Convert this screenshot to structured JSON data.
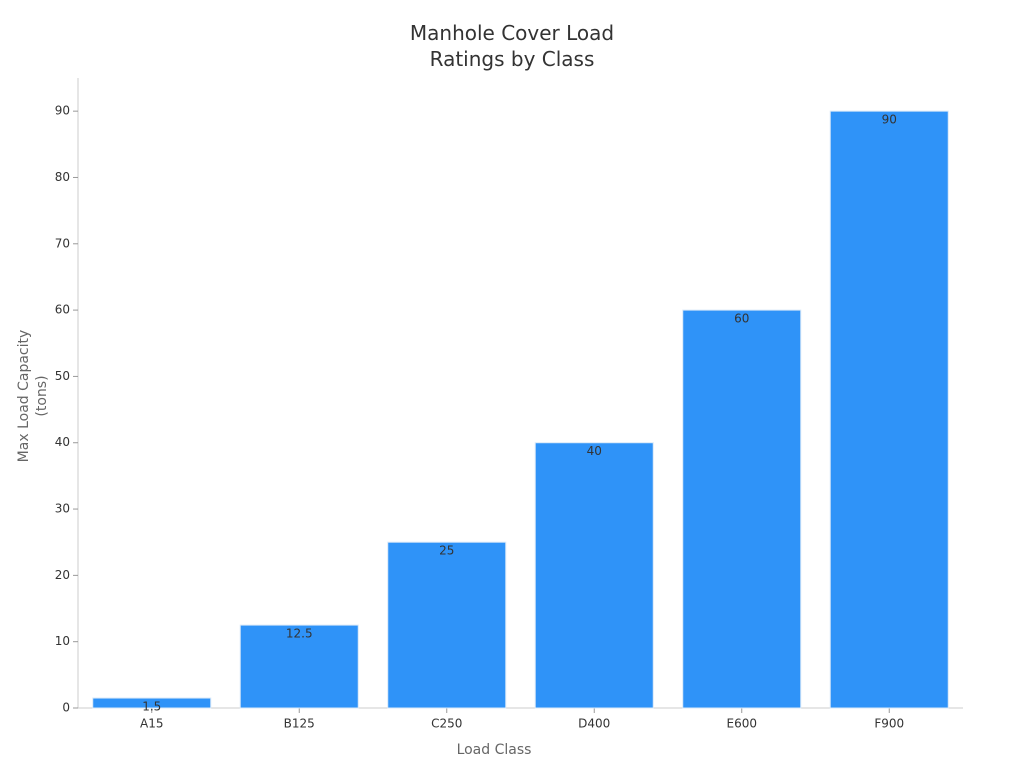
{
  "chart_data": {
    "type": "bar",
    "title": "Manhole Cover Load Ratings by Class",
    "x_label": "Load Class",
    "y_label": "Max Load Capacity (tons)",
    "categories": [
      "A15",
      "B125",
      "C250",
      "D400",
      "E600",
      "F900"
    ],
    "values": [
      1.5,
      12.5,
      25,
      40,
      60,
      90
    ],
    "color": "#2f93f8",
    "ylim": [
      0,
      95
    ],
    "yticks": [
      0,
      10,
      20,
      30,
      40,
      50,
      60,
      70,
      80,
      90
    ],
    "grid": false
  }
}
